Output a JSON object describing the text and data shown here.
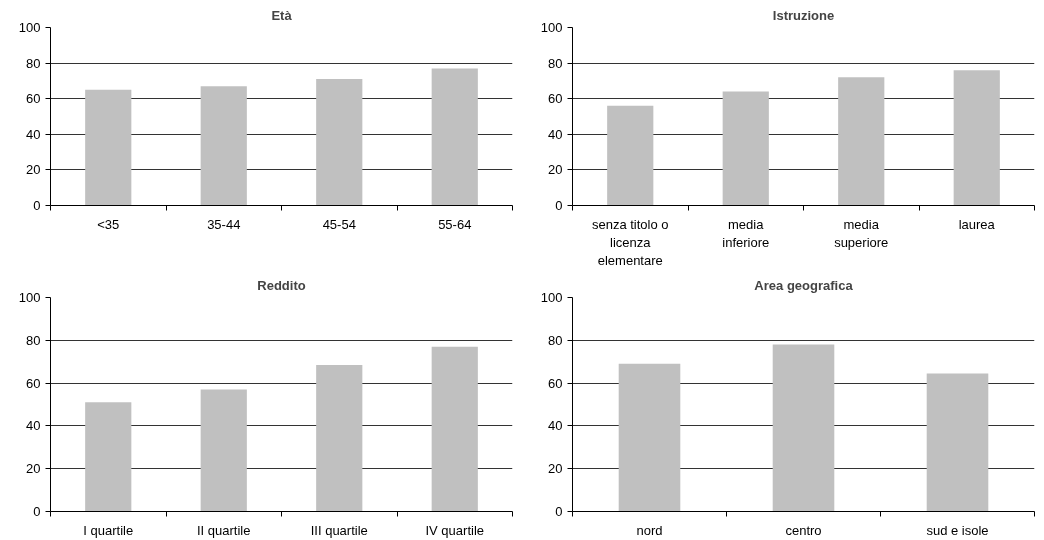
{
  "chart_data": [
    {
      "type": "bar",
      "title": "Età",
      "categories": [
        "<35",
        "35-44",
        "45-54",
        "55-64"
      ],
      "values": [
        65,
        67,
        71,
        77
      ],
      "color": "#c0c0c0",
      "ylim": [
        0,
        100
      ],
      "yticks": [
        0,
        20,
        40,
        60,
        80,
        100
      ],
      "grid": "y"
    },
    {
      "type": "bar",
      "title": "Istruzione",
      "categories": [
        "senza titolo o\nlicenza\nelementare",
        "media\ninferiore",
        "media\nsuperiore",
        "laurea"
      ],
      "values": [
        56,
        64,
        72,
        76
      ],
      "color": "#c0c0c0",
      "ylim": [
        0,
        100
      ],
      "yticks": [
        0,
        20,
        40,
        60,
        80,
        100
      ],
      "grid": "y"
    },
    {
      "type": "bar",
      "title": "Reddito",
      "categories": [
        "I quartile",
        "II quartile",
        "III quartile",
        "IV quartile"
      ],
      "values": [
        51,
        57,
        68.5,
        77
      ],
      "color": "#c0c0c0",
      "ylim": [
        0,
        100
      ],
      "yticks": [
        0,
        20,
        40,
        60,
        80,
        100
      ],
      "grid": "y"
    },
    {
      "type": "bar",
      "title": "Area geografica",
      "categories": [
        "nord",
        "centro",
        "sud e isole"
      ],
      "values": [
        69,
        78,
        64.5
      ],
      "color": "#c0c0c0",
      "ylim": [
        0,
        100
      ],
      "yticks": [
        0,
        20,
        40,
        60,
        80,
        100
      ],
      "grid": "y"
    }
  ]
}
